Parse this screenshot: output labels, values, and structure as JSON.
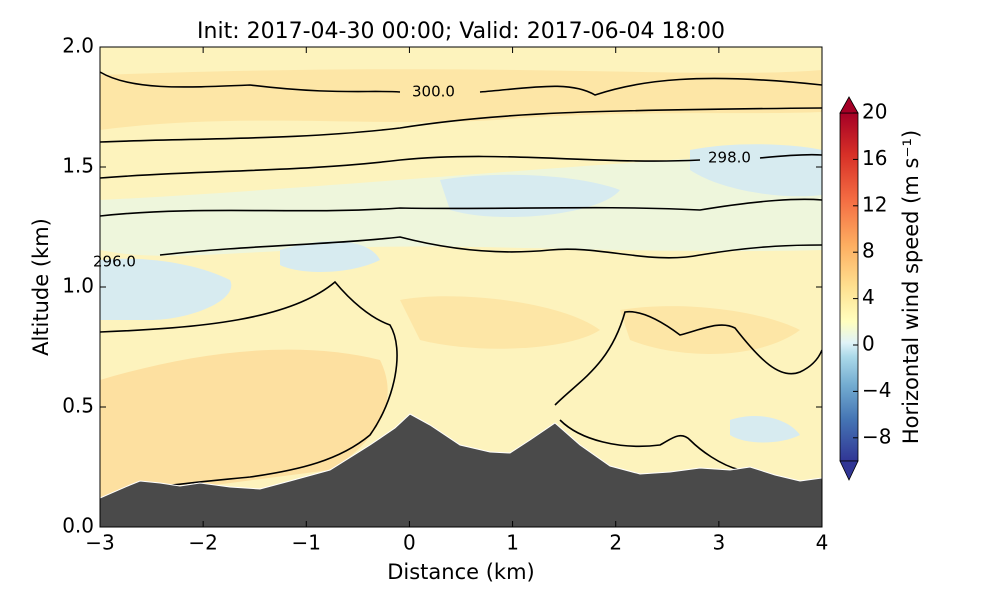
{
  "chart_data": {
    "type": "contour",
    "title": "Init: 2017-04-30 00:00; Valid: 2017-06-04 18:00",
    "xlabel": "Distance (km)",
    "ylabel": "Altitude (km)",
    "xlim": [
      -3,
      4
    ],
    "xticks": [
      {
        "value": -3,
        "label": "−3"
      },
      {
        "value": -2,
        "label": "−2"
      },
      {
        "value": -1,
        "label": "−1"
      },
      0,
      1,
      2,
      3,
      4
    ],
    "ylim": [
      0,
      2
    ],
    "yticks": [
      {
        "value": 0,
        "label": "0.0"
      },
      {
        "value": 0.5,
        "label": "0.5"
      },
      {
        "value": 1,
        "label": "1.0"
      },
      {
        "value": 1.5,
        "label": "1.5"
      },
      {
        "value": 2,
        "label": "2.0"
      }
    ],
    "colorbar": {
      "label": "Horizontal wind speed (m s⁻¹)",
      "lim": [
        -10,
        20
      ],
      "ticks": [
        {
          "value": -8,
          "label": "−8"
        },
        {
          "value": -4,
          "label": "−4"
        },
        0,
        4,
        8,
        12,
        16,
        20
      ]
    },
    "contour_labels": [
      {
        "value": 300,
        "label": "300.0"
      },
      {
        "value": 298,
        "label": "298.0"
      },
      {
        "value": 296,
        "label": "296.0"
      }
    ]
  }
}
